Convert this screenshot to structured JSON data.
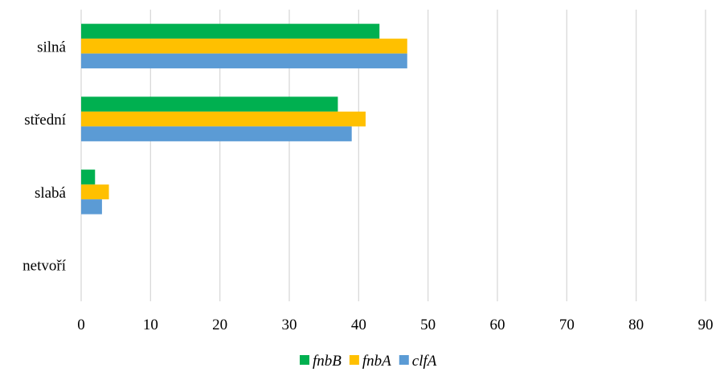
{
  "chart_data": {
    "type": "bar",
    "orientation": "horizontal",
    "categories": [
      "silná",
      "střední",
      "slabá",
      "netvoří"
    ],
    "series": [
      {
        "name": "fnbB",
        "color": "#00b050",
        "values": [
          43,
          37,
          2,
          0
        ]
      },
      {
        "name": "fnbA",
        "color": "#ffc000",
        "values": [
          47,
          41,
          4,
          0
        ]
      },
      {
        "name": "clfA",
        "color": "#5b9bd5",
        "values": [
          47,
          39,
          3,
          0
        ]
      }
    ],
    "xlim": [
      0,
      90
    ],
    "xticks": [
      "0",
      "10",
      "20",
      "30",
      "40",
      "50",
      "60",
      "70",
      "80",
      "90"
    ],
    "grid": true,
    "legend_position": "bottom"
  }
}
